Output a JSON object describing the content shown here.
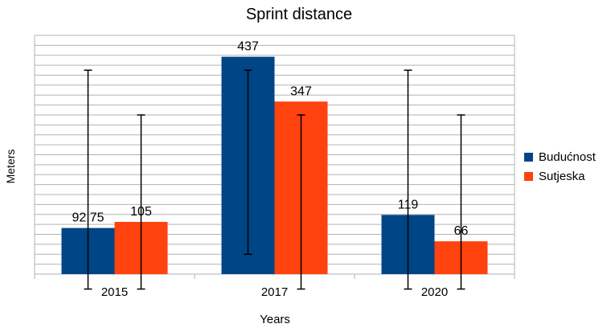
{
  "chart_data": {
    "type": "bar",
    "title": "Sprint distance",
    "xlabel": "Years",
    "ylabel": "Meters",
    "categories": [
      "2015",
      "2017",
      "2020"
    ],
    "ylim": [
      0,
      480
    ],
    "grid": true,
    "legend_position": "right",
    "series": [
      {
        "name": "Budućnost",
        "color": "#004586",
        "values": [
          92.75,
          437,
          119
        ],
        "labels": [
          "92.75",
          "437",
          "119"
        ],
        "error_low": [
          -30,
          40,
          -30
        ],
        "error_high": [
          410,
          410,
          410
        ]
      },
      {
        "name": "Sutjeska",
        "color": "#ff420e",
        "values": [
          105,
          347,
          66
        ],
        "labels": [
          "105",
          "347",
          "66"
        ],
        "error_low": [
          -30,
          -30,
          -30
        ],
        "error_high": [
          320,
          320,
          320
        ]
      }
    ]
  }
}
